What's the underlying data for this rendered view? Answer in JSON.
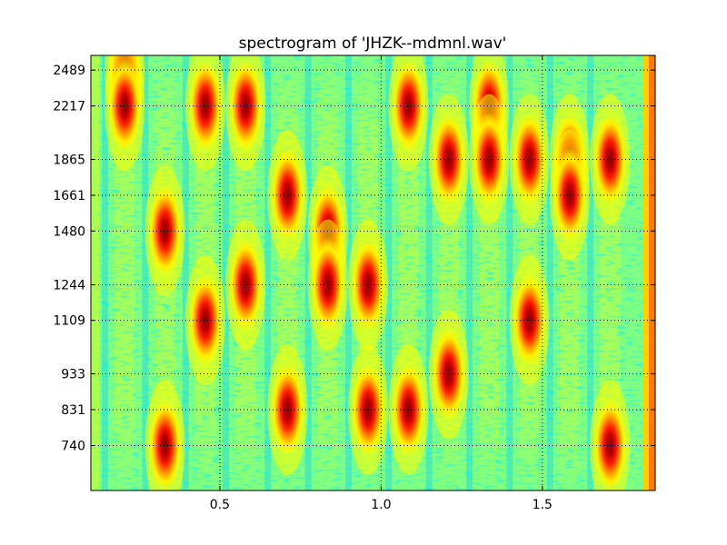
{
  "chart_data": {
    "type": "heatmap",
    "title": "spectrogram of 'JHZK--mdmnl.wav'",
    "xlabel": "",
    "ylabel": "",
    "xlim": [
      0.1,
      1.85
    ],
    "ylim": [
      640,
      2610
    ],
    "x_ticks": [
      0.5,
      1.0,
      1.5
    ],
    "x_tick_labels": [
      "0.5",
      "1.0",
      "1.5"
    ],
    "y_ticks": [
      740,
      831,
      933,
      1109,
      1244,
      1480,
      1661,
      1865,
      2217,
      2489
    ],
    "y_tick_labels": [
      "740",
      "831",
      "933",
      "1109",
      "1244",
      "1480",
      "1661",
      "1865",
      "2217",
      "2489"
    ],
    "grid": true,
    "colormap": "jet",
    "background_color": "#80ff80",
    "notes_played": [
      {
        "t": 0.205,
        "f": 2489
      },
      {
        "t": 0.205,
        "f": 2217
      },
      {
        "t": 0.33,
        "f": 1480
      },
      {
        "t": 0.33,
        "f": 740
      },
      {
        "t": 0.455,
        "f": 2217
      },
      {
        "t": 0.455,
        "f": 1109
      },
      {
        "t": 0.58,
        "f": 2217
      },
      {
        "t": 0.58,
        "f": 1244
      },
      {
        "t": 0.71,
        "f": 1661
      },
      {
        "t": 0.71,
        "f": 831
      },
      {
        "t": 0.835,
        "f": 1480
      },
      {
        "t": 0.835,
        "f": 1244
      },
      {
        "t": 0.96,
        "f": 1244
      },
      {
        "t": 0.96,
        "f": 831
      },
      {
        "t": 1.085,
        "f": 2217
      },
      {
        "t": 1.085,
        "f": 831
      },
      {
        "t": 1.21,
        "f": 1865
      },
      {
        "t": 1.21,
        "f": 933
      },
      {
        "t": 1.335,
        "f": 2217
      },
      {
        "t": 1.335,
        "f": 1865
      },
      {
        "t": 1.46,
        "f": 1865
      },
      {
        "t": 1.46,
        "f": 1109
      },
      {
        "t": 1.585,
        "f": 1865
      },
      {
        "t": 1.585,
        "f": 1661
      },
      {
        "t": 1.71,
        "f": 1865
      },
      {
        "t": 1.71,
        "f": 740
      }
    ]
  }
}
